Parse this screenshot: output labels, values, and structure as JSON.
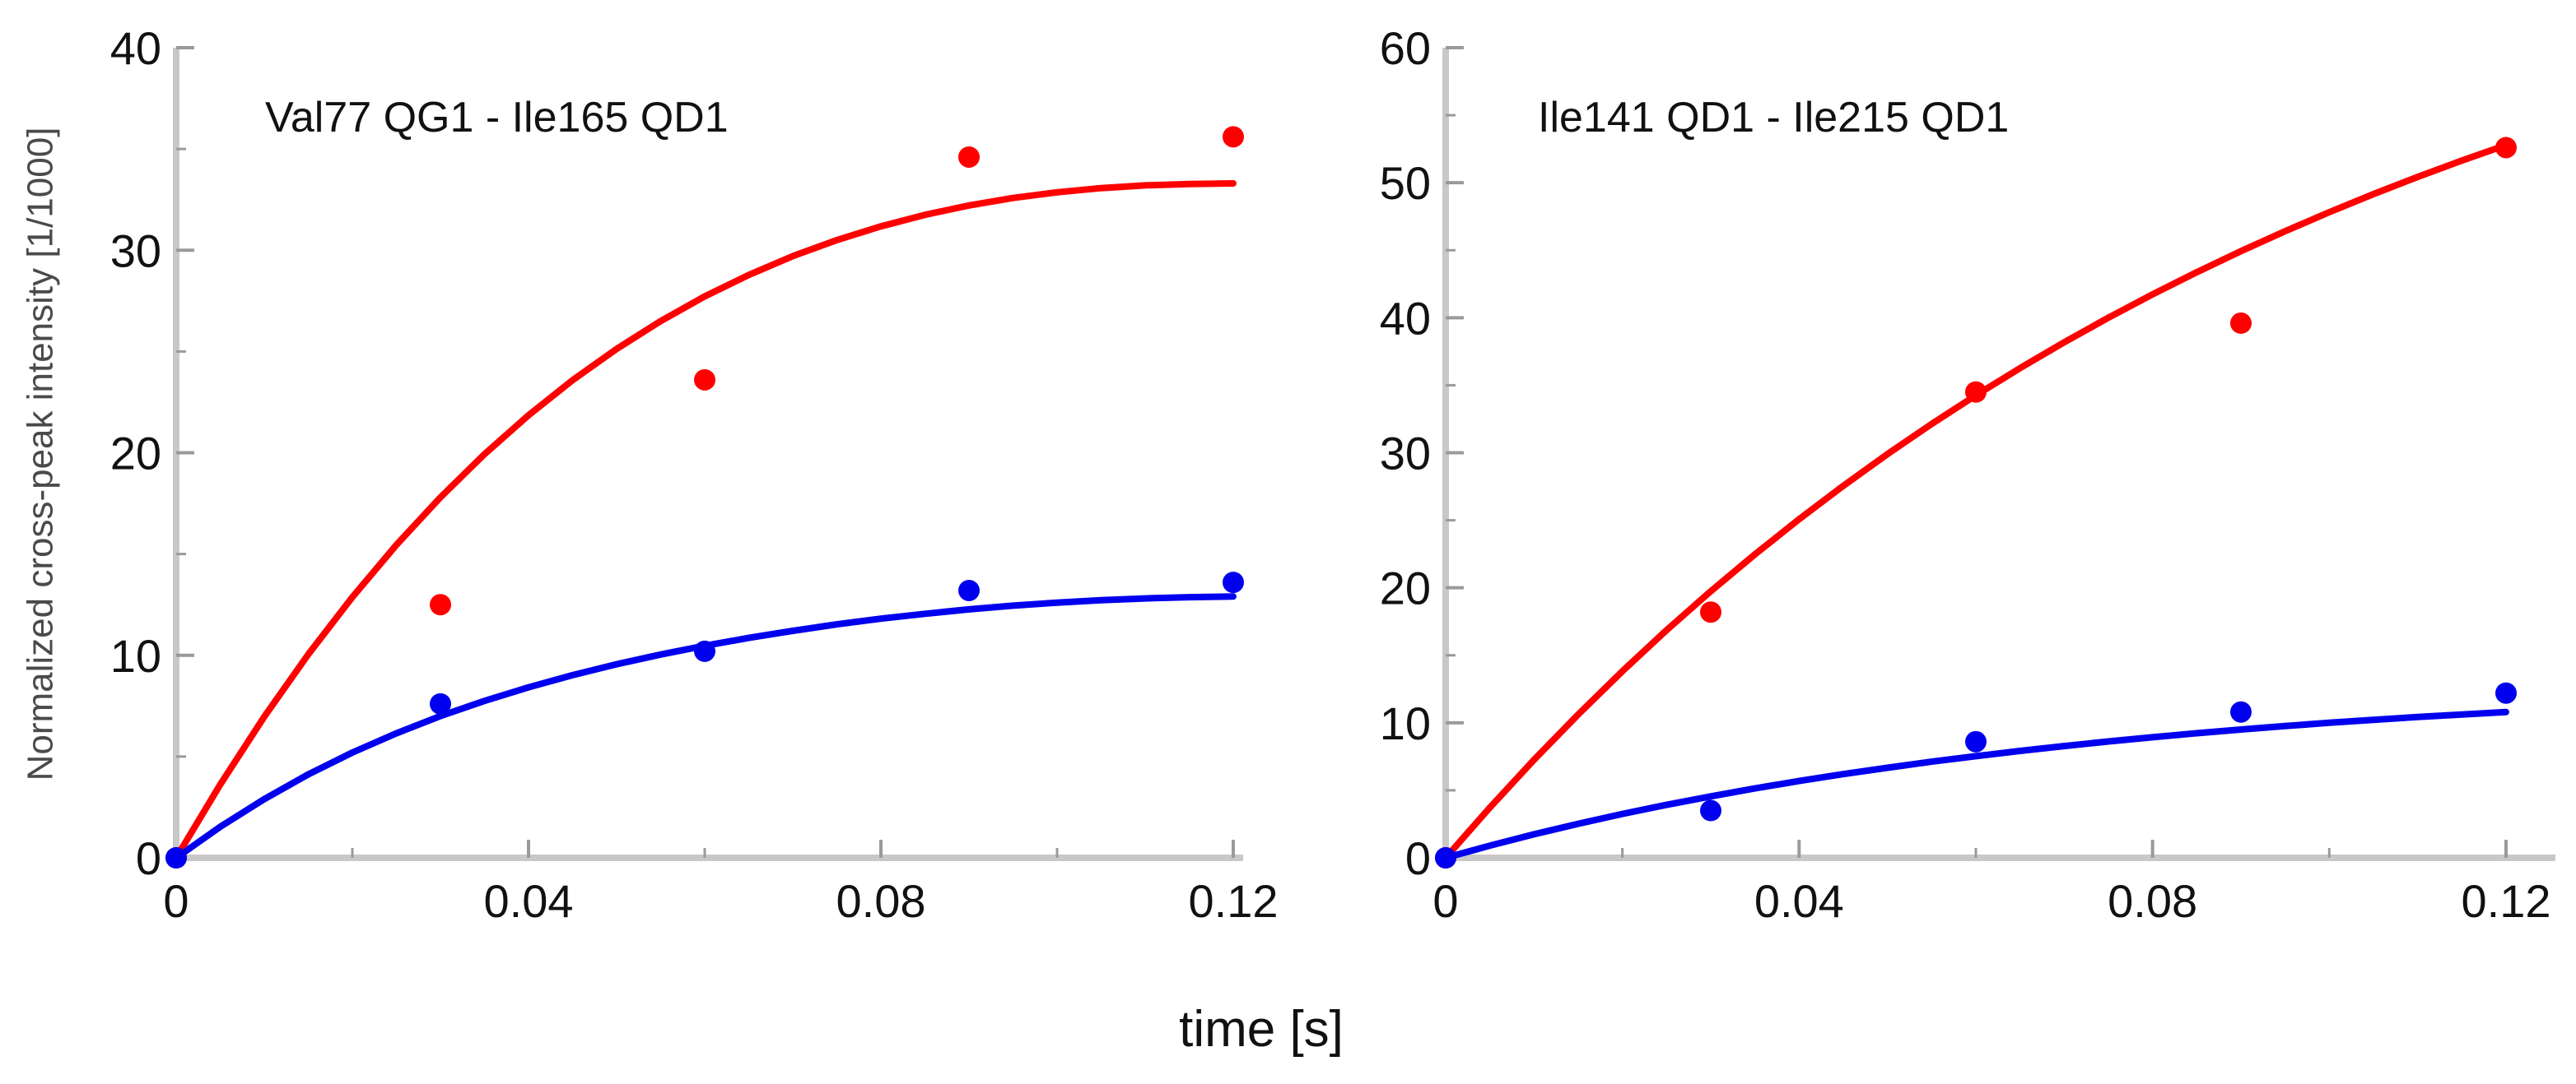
{
  "figure": {
    "ylabel": "Normalized cross-peak intensity [1/1000]",
    "xlabel": "time [s]"
  },
  "chart_data": [
    {
      "type": "scatter",
      "title": "Val77 QG1 - Ile165 QD1",
      "xlabel": "time [s]",
      "ylabel": "Normalized cross-peak intensity [1/1000]",
      "xlim": [
        0,
        0.12
      ],
      "ylim": [
        0,
        40
      ],
      "xticks": [
        "0",
        "0.04",
        "0.08",
        "0.12"
      ],
      "yticks": [
        "0",
        "10",
        "20",
        "30",
        "40"
      ],
      "grid": false,
      "series": [
        {
          "name": "red",
          "color": "#ff0000",
          "points": [
            [
              0,
              0
            ],
            [
              0.03,
              12.5
            ],
            [
              0.06,
              23.6
            ],
            [
              0.09,
              34.6
            ],
            [
              0.12,
              35.6
            ]
          ],
          "fit": [
            [
              0,
              0
            ],
            [
              0.005,
              3.62
            ],
            [
              0.01,
              6.97
            ],
            [
              0.015,
              10.05
            ],
            [
              0.02,
              12.87
            ],
            [
              0.025,
              15.45
            ],
            [
              0.03,
              17.8
            ],
            [
              0.035,
              19.93
            ],
            [
              0.04,
              21.85
            ],
            [
              0.045,
              23.58
            ],
            [
              0.05,
              25.13
            ],
            [
              0.055,
              26.5
            ],
            [
              0.06,
              27.72
            ],
            [
              0.065,
              28.78
            ],
            [
              0.07,
              29.71
            ],
            [
              0.075,
              30.5
            ],
            [
              0.08,
              31.18
            ],
            [
              0.085,
              31.75
            ],
            [
              0.09,
              32.21
            ],
            [
              0.095,
              32.58
            ],
            [
              0.1,
              32.86
            ],
            [
              0.105,
              33.07
            ],
            [
              0.11,
              33.2
            ],
            [
              0.115,
              33.27
            ],
            [
              0.12,
              33.3
            ]
          ]
        },
        {
          "name": "blue",
          "color": "#0000ee",
          "points": [
            [
              0,
              0
            ],
            [
              0.03,
              7.6
            ],
            [
              0.06,
              10.2
            ],
            [
              0.09,
              13.2
            ],
            [
              0.12,
              13.6
            ]
          ],
          "fit": [
            [
              0,
              0
            ],
            [
              0.005,
              1.53
            ],
            [
              0.01,
              2.9
            ],
            [
              0.015,
              4.12
            ],
            [
              0.02,
              5.2
            ],
            [
              0.025,
              6.15
            ],
            [
              0.03,
              7.0
            ],
            [
              0.035,
              7.75
            ],
            [
              0.04,
              8.42
            ],
            [
              0.045,
              9.02
            ],
            [
              0.05,
              9.56
            ],
            [
              0.055,
              10.04
            ],
            [
              0.06,
              10.47
            ],
            [
              0.065,
              10.86
            ],
            [
              0.07,
              11.21
            ],
            [
              0.075,
              11.53
            ],
            [
              0.08,
              11.81
            ],
            [
              0.085,
              12.05
            ],
            [
              0.09,
              12.27
            ],
            [
              0.095,
              12.45
            ],
            [
              0.1,
              12.6
            ],
            [
              0.105,
              12.72
            ],
            [
              0.11,
              12.81
            ],
            [
              0.115,
              12.87
            ],
            [
              0.12,
              12.9
            ]
          ]
        }
      ]
    },
    {
      "type": "scatter",
      "title": "Ile141 QD1 - Ile215 QD1",
      "xlabel": "time [s]",
      "ylabel": "",
      "xlim": [
        0,
        0.12
      ],
      "ylim": [
        0,
        60
      ],
      "xticks": [
        "0",
        "0.04",
        "0.08",
        "0.12"
      ],
      "yticks": [
        "0",
        "10",
        "20",
        "30",
        "40",
        "50",
        "60"
      ],
      "grid": false,
      "series": [
        {
          "name": "red",
          "color": "#ff0000",
          "points": [
            [
              0,
              0
            ],
            [
              0.03,
              18.2
            ],
            [
              0.06,
              34.5
            ],
            [
              0.09,
              39.6
            ],
            [
              0.12,
              52.6
            ]
          ],
          "fit": [
            [
              0,
              0
            ],
            [
              0.005,
              3.72
            ],
            [
              0.01,
              7.26
            ],
            [
              0.015,
              10.62
            ],
            [
              0.02,
              13.82
            ],
            [
              0.025,
              16.86
            ],
            [
              0.03,
              19.74
            ],
            [
              0.035,
              22.48
            ],
            [
              0.04,
              25.08
            ],
            [
              0.045,
              27.55
            ],
            [
              0.05,
              29.9
            ],
            [
              0.055,
              32.13
            ],
            [
              0.06,
              34.25
            ],
            [
              0.065,
              36.27
            ],
            [
              0.07,
              38.18
            ],
            [
              0.075,
              40.0
            ],
            [
              0.08,
              41.73
            ],
            [
              0.085,
              43.37
            ],
            [
              0.09,
              44.93
            ],
            [
              0.095,
              46.41
            ],
            [
              0.1,
              47.82
            ],
            [
              0.105,
              49.16
            ],
            [
              0.11,
              50.43
            ],
            [
              0.115,
              51.64
            ],
            [
              0.12,
              52.79
            ]
          ]
        },
        {
          "name": "blue",
          "color": "#0000ee",
          "points": [
            [
              0,
              0
            ],
            [
              0.03,
              3.5
            ],
            [
              0.06,
              8.6
            ],
            [
              0.09,
              10.8
            ],
            [
              0.12,
              12.2
            ]
          ],
          "fit": [
            [
              0,
              0
            ],
            [
              0.005,
              0.9
            ],
            [
              0.01,
              1.74
            ],
            [
              0.015,
              2.52
            ],
            [
              0.02,
              3.25
            ],
            [
              0.025,
              3.92
            ],
            [
              0.03,
              4.55
            ],
            [
              0.035,
              5.14
            ],
            [
              0.04,
              5.69
            ],
            [
              0.045,
              6.2
            ],
            [
              0.05,
              6.67
            ],
            [
              0.055,
              7.12
            ],
            [
              0.06,
              7.53
            ],
            [
              0.065,
              7.92
            ],
            [
              0.07,
              8.28
            ],
            [
              0.075,
              8.62
            ],
            [
              0.08,
              8.93
            ],
            [
              0.085,
              9.23
            ],
            [
              0.09,
              9.5
            ],
            [
              0.095,
              9.76
            ],
            [
              0.1,
              10.0
            ],
            [
              0.105,
              10.22
            ],
            [
              0.11,
              10.43
            ],
            [
              0.115,
              10.62
            ],
            [
              0.12,
              10.8
            ]
          ]
        }
      ]
    }
  ]
}
